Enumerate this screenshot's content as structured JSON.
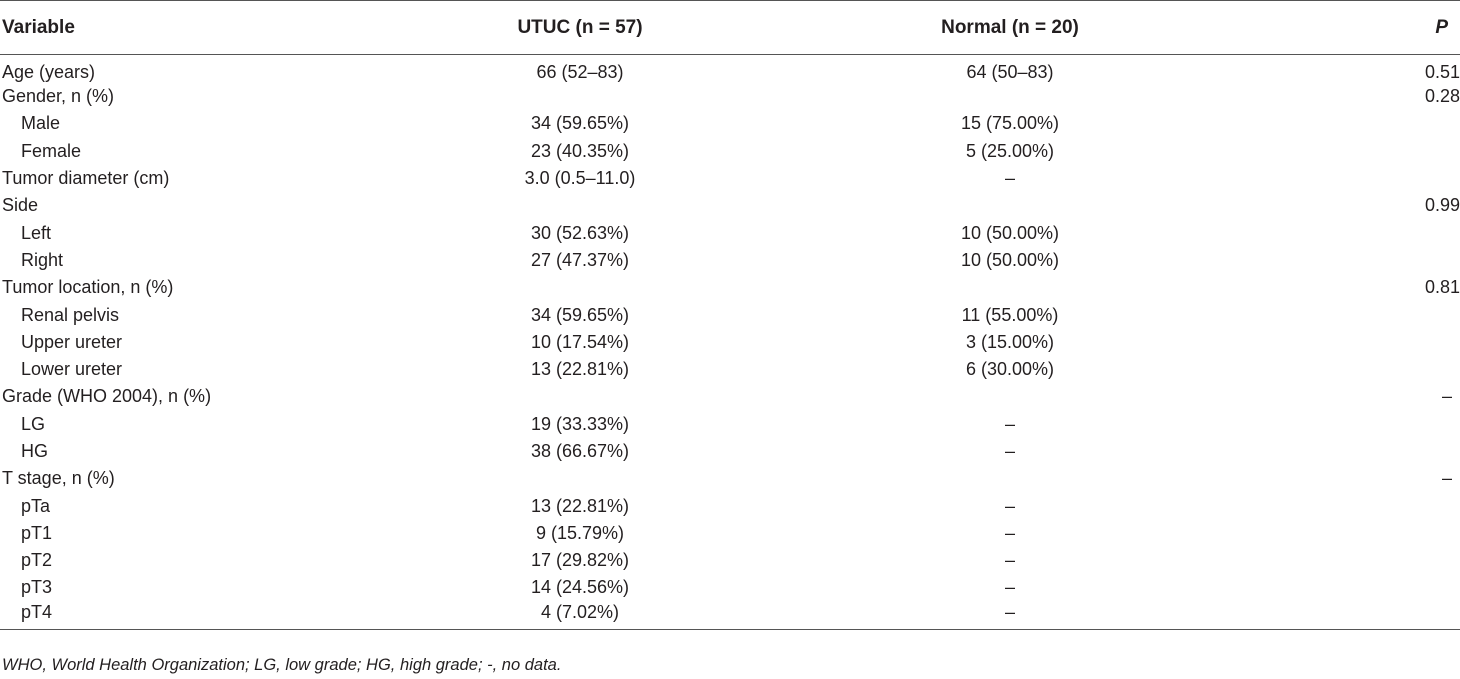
{
  "table": {
    "headers": {
      "variable": "Variable",
      "utuc": "UTUC (n = 57)",
      "normal": "Normal (n = 20)",
      "p": "P"
    },
    "rows": [
      {
        "variable": "Age (years)",
        "utuc": "66 (52–83)",
        "normal": "64 (50–83)",
        "p": "0.51",
        "indent": false
      },
      {
        "variable": "Gender, n (%)",
        "utuc": "",
        "normal": "",
        "p": "0.28",
        "indent": false
      },
      {
        "variable": "Male",
        "utuc": "34 (59.65%)",
        "normal": "15 (75.00%)",
        "p": "",
        "indent": true
      },
      {
        "variable": "Female",
        "utuc": "23 (40.35%)",
        "normal": "5 (25.00%)",
        "p": "",
        "indent": true
      },
      {
        "variable": "Tumor diameter (cm)",
        "utuc": "3.0 (0.5–11.0)",
        "normal": "–",
        "p": "",
        "indent": false
      },
      {
        "variable": "Side",
        "utuc": "",
        "normal": "",
        "p": "0.99",
        "indent": false
      },
      {
        "variable": "Left",
        "utuc": "30 (52.63%)",
        "normal": "10 (50.00%)",
        "p": "",
        "indent": true
      },
      {
        "variable": "Right",
        "utuc": "27 (47.37%)",
        "normal": "10 (50.00%)",
        "p": "",
        "indent": true
      },
      {
        "variable": "Tumor location, n (%)",
        "utuc": "",
        "normal": "",
        "p": "0.81",
        "indent": false
      },
      {
        "variable": "Renal pelvis",
        "utuc": "34 (59.65%)",
        "normal": "11 (55.00%)",
        "p": "",
        "indent": true
      },
      {
        "variable": "Upper ureter",
        "utuc": "10 (17.54%)",
        "normal": "3 (15.00%)",
        "p": "",
        "indent": true
      },
      {
        "variable": "Lower ureter",
        "utuc": "13 (22.81%)",
        "normal": "6 (30.00%)",
        "p": "",
        "indent": true
      },
      {
        "variable": "Grade (WHO 2004), n (%)",
        "utuc": "",
        "normal": "",
        "p": "–",
        "indent": false
      },
      {
        "variable": "LG",
        "utuc": "19 (33.33%)",
        "normal": "–",
        "p": "",
        "indent": true
      },
      {
        "variable": "HG",
        "utuc": "38 (66.67%)",
        "normal": "–",
        "p": "",
        "indent": true
      },
      {
        "variable": "T stage, n (%)",
        "utuc": "",
        "normal": "",
        "p": "–",
        "indent": false
      },
      {
        "variable": "pTa",
        "utuc": "13 (22.81%)",
        "normal": "–",
        "p": "",
        "indent": true
      },
      {
        "variable": "pT1",
        "utuc": "9 (15.79%)",
        "normal": "–",
        "p": "",
        "indent": true
      },
      {
        "variable": "pT2",
        "utuc": "17 (29.82%)",
        "normal": "–",
        "p": "",
        "indent": true
      },
      {
        "variable": "pT3",
        "utuc": "14 (24.56%)",
        "normal": "–",
        "p": "",
        "indent": true
      },
      {
        "variable": "pT4",
        "utuc": "4 (7.02%)",
        "normal": "–",
        "p": "",
        "indent": true
      }
    ]
  },
  "footnote": "WHO, World Health Organization; LG, low grade; HG, high grade; -, no data."
}
